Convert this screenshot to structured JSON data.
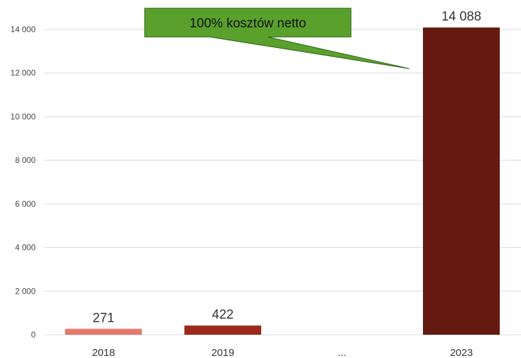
{
  "chart_data": {
    "type": "bar",
    "categories": [
      "2018",
      "2019",
      "...",
      "2023"
    ],
    "values": [
      271,
      422,
      null,
      14088
    ],
    "data_labels": [
      "271",
      "422",
      "",
      "14 088"
    ],
    "colors": [
      "#e8786b",
      "#9b2a1c",
      null,
      "#641a10"
    ],
    "ylim": [
      0,
      14000
    ],
    "yticks": [
      0,
      2000,
      4000,
      6000,
      8000,
      10000,
      12000,
      14000
    ],
    "ytick_labels": [
      "0",
      "2 000",
      "4 000",
      "6 000",
      "8 000",
      "10 000",
      "12 000",
      "14 000"
    ],
    "grid": true,
    "annotation": {
      "text": "100% kosztów netto",
      "points_to": "2023",
      "fill": "#5aa02c",
      "border": "#2f5f16"
    }
  }
}
